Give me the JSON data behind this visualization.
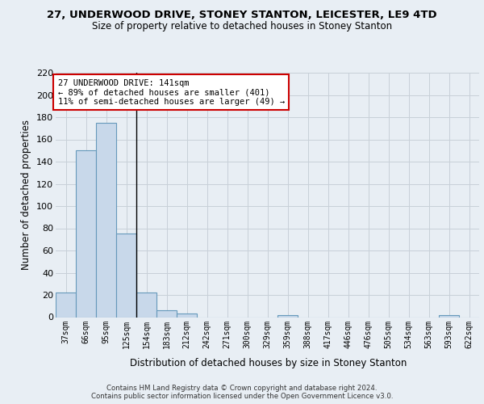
{
  "title1": "27, UNDERWOOD DRIVE, STONEY STANTON, LEICESTER, LE9 4TD",
  "title2": "Size of property relative to detached houses in Stoney Stanton",
  "xlabel": "Distribution of detached houses by size in Stoney Stanton",
  "ylabel": "Number of detached properties",
  "categories": [
    "37sqm",
    "66sqm",
    "95sqm",
    "125sqm",
    "154sqm",
    "183sqm",
    "212sqm",
    "242sqm",
    "271sqm",
    "300sqm",
    "329sqm",
    "359sqm",
    "388sqm",
    "417sqm",
    "446sqm",
    "476sqm",
    "505sqm",
    "534sqm",
    "563sqm",
    "593sqm",
    "622sqm"
  ],
  "values": [
    22,
    150,
    175,
    75,
    22,
    6,
    3,
    0,
    0,
    0,
    0,
    2,
    0,
    0,
    0,
    0,
    0,
    0,
    0,
    2,
    0
  ],
  "bar_color": "#c8d8ea",
  "bar_edge_color": "#6699bb",
  "vline_color": "#000000",
  "annotation_title": "27 UNDERWOOD DRIVE: 141sqm",
  "annotation_line1": "← 89% of detached houses are smaller (401)",
  "annotation_line2": "11% of semi-detached houses are larger (49) →",
  "annotation_box_color": "#ffffff",
  "annotation_box_edge": "#cc0000",
  "ylim": [
    0,
    220
  ],
  "yticks": [
    0,
    20,
    40,
    60,
    80,
    100,
    120,
    140,
    160,
    180,
    200,
    220
  ],
  "footer": "Contains HM Land Registry data © Crown copyright and database right 2024.\nContains public sector information licensed under the Open Government Licence v3.0.",
  "bg_color": "#e8eef4",
  "plot_bg_color": "#e8eef4",
  "grid_color": "#c8d0d8"
}
